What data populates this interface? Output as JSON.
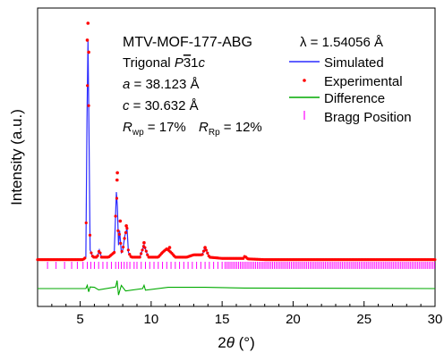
{
  "chart_data": {
    "type": "line",
    "title": "",
    "xlabel": "2θ (°)",
    "ylabel": "Intensity (a.u.)",
    "xlim": [
      2,
      30
    ],
    "x_ticks": [
      5,
      10,
      15,
      20,
      25,
      30
    ],
    "y_ticks": [],
    "grid": false,
    "legend_position": "top-right",
    "annotations": {
      "compound": "MTV-MOF-177-ABG",
      "wavelength": "λ = 1.54056 Å",
      "space_group_label": "Trigonal",
      "space_group": "P31c",
      "cell_a": "a = 38.123 Å",
      "cell_c": "c = 30.632 Å",
      "rwp": "Rwp = 17%",
      "rp": "RRp = 12%"
    },
    "series": [
      {
        "name": "Simulated",
        "style": "line",
        "color": "#2b2bff",
        "x": [
          2.0,
          5.2,
          5.4,
          5.48,
          5.55,
          5.62,
          5.7,
          5.9,
          6.2,
          6.35,
          6.5,
          7.0,
          7.4,
          7.55,
          7.62,
          7.7,
          7.78,
          7.9,
          8.0,
          8.15,
          8.3,
          8.4,
          8.6,
          9.2,
          9.5,
          9.8,
          10.5,
          10.8,
          11.1,
          11.4,
          11.7,
          12.5,
          13.0,
          13.6,
          13.8,
          14.1,
          15.0,
          16.5,
          16.6,
          16.8,
          18.0,
          30.0
        ],
        "y": [
          2.0,
          2.0,
          3.0,
          60.0,
          93.0,
          55.0,
          6.0,
          3.0,
          3.0,
          6.0,
          3.0,
          3.0,
          5.0,
          30.0,
          24.0,
          8.0,
          14.0,
          5.0,
          6.0,
          12.0,
          15.0,
          5.0,
          3.0,
          3.0,
          8.0,
          3.0,
          3.0,
          5.0,
          6.5,
          5.0,
          3.0,
          3.0,
          4.0,
          4.0,
          7.0,
          3.0,
          2.5,
          2.5,
          3.5,
          2.3,
          2.0,
          2.0
        ]
      },
      {
        "name": "Experimental",
        "style": "points",
        "color": "#ff0000",
        "x": [
          5.55,
          5.5,
          5.6,
          7.62,
          7.6,
          7.82,
          8.25,
          9.5,
          11.3,
          13.8
        ],
        "y": [
          100.0,
          93.0,
          88.0,
          38.0,
          35.0,
          18.0,
          16.0,
          9.0,
          7.0,
          7.0
        ]
      },
      {
        "name": "Difference",
        "style": "line",
        "color": "#00aa00",
        "x": [
          2.0,
          5.4,
          5.5,
          5.6,
          5.7,
          6.0,
          6.3,
          7.5,
          7.6,
          7.7,
          7.9,
          8.2,
          9.4,
          9.5,
          9.6,
          11.2,
          13.8,
          16.6,
          30.0
        ],
        "y": [
          0.0,
          0.0,
          2.0,
          -2.0,
          1.0,
          0.8,
          -0.8,
          1.0,
          5.0,
          -4.0,
          2.0,
          -1.5,
          0.0,
          2.0,
          -1.0,
          0.8,
          0.8,
          0.3,
          0.0
        ]
      },
      {
        "name": "Bragg Position",
        "style": "ticks",
        "color": "#ff00ff",
        "x": [
          2.7,
          3.3,
          3.9,
          4.4,
          4.8,
          5.2,
          5.5,
          5.75,
          6.0,
          6.3,
          6.6,
          6.9,
          7.2,
          7.5,
          7.7,
          7.9,
          8.1,
          8.3,
          8.5,
          8.8,
          9.0,
          9.3,
          9.6,
          9.9,
          10.2,
          10.5,
          10.8,
          11.1,
          11.4,
          11.7,
          12.0,
          12.3,
          12.6,
          12.9,
          13.2,
          13.5,
          13.8,
          14.1,
          14.4,
          14.7,
          15.0
        ]
      }
    ]
  }
}
